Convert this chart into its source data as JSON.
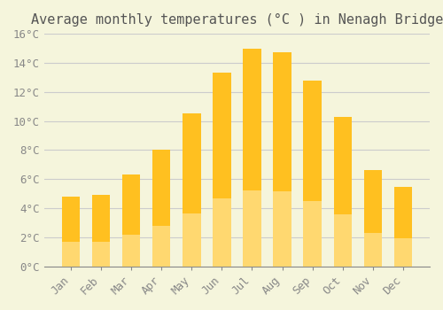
{
  "title": "Average monthly temperatures (°C ) in Nenagh Bridge",
  "months": [
    "Jan",
    "Feb",
    "Mar",
    "Apr",
    "May",
    "Jun",
    "Jul",
    "Aug",
    "Sep",
    "Oct",
    "Nov",
    "Dec"
  ],
  "values": [
    4.8,
    4.9,
    6.3,
    8.0,
    10.5,
    13.3,
    15.0,
    14.7,
    12.8,
    10.3,
    6.6,
    5.5
  ],
  "bar_color_top": "#FFC020",
  "bar_color_bottom": "#FFD870",
  "background_color": "#F5F5DC",
  "grid_color": "#CCCCCC",
  "ylim": [
    0,
    16
  ],
  "yticks": [
    0,
    2,
    4,
    6,
    8,
    10,
    12,
    14,
    16
  ],
  "ytick_labels": [
    "0°C",
    "2°C",
    "4°C",
    "6°C",
    "8°C",
    "10°C",
    "12°C",
    "14°C",
    "16°C"
  ],
  "title_fontsize": 11,
  "tick_fontsize": 9,
  "title_color": "#555555",
  "tick_color": "#888888"
}
